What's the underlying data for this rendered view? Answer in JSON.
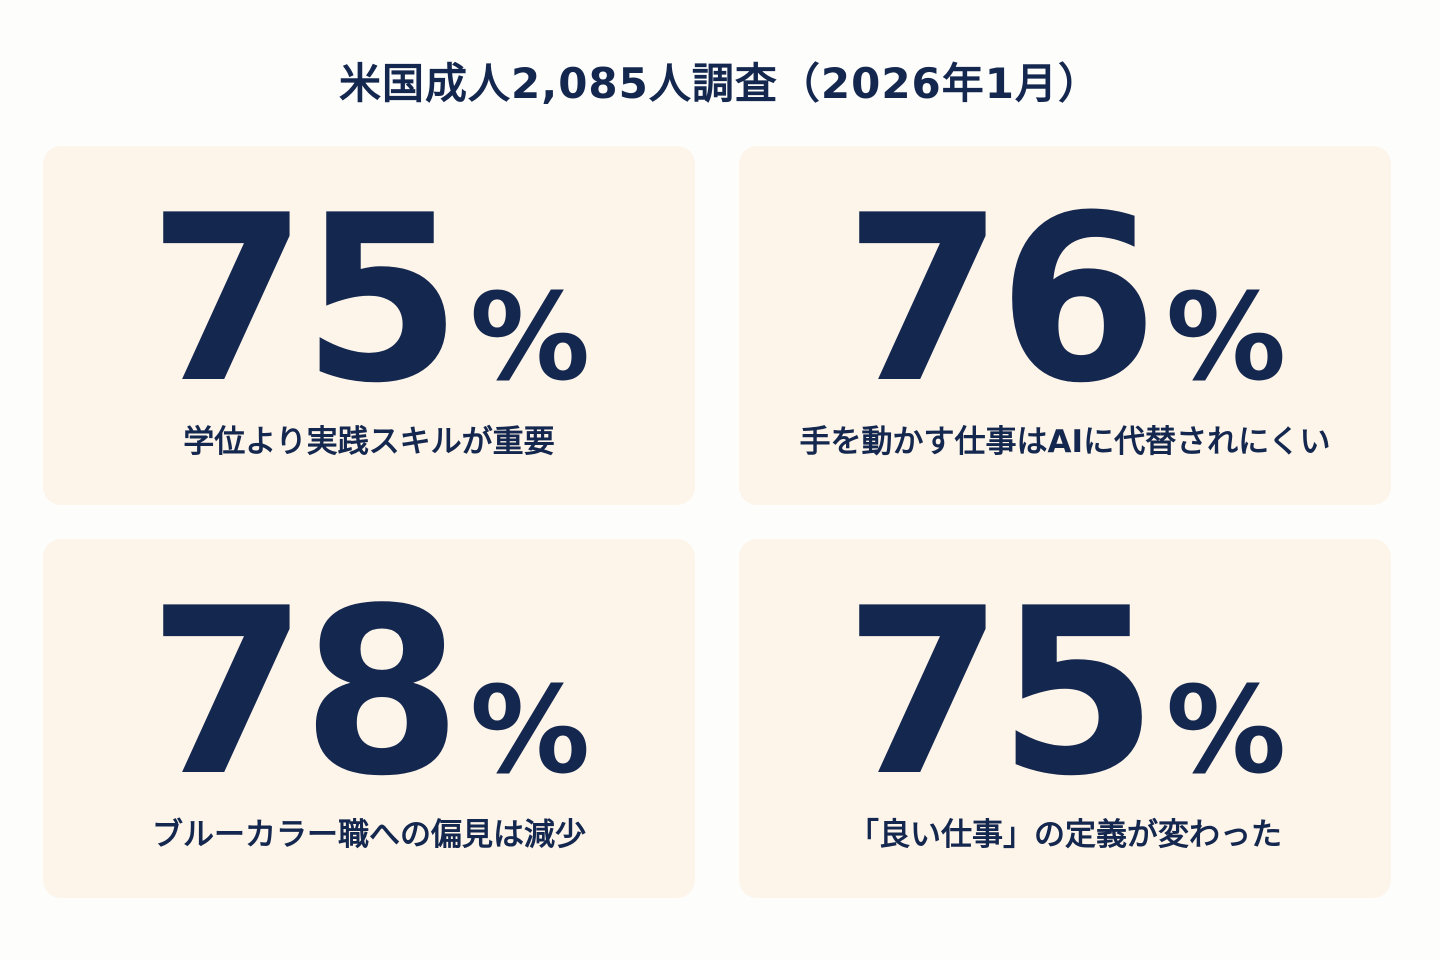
{
  "title": "米国成人2,085人調査（2026年1月）",
  "cards": [
    {
      "value": 75,
      "unit": "%",
      "label": "学位より実践スキルが重要"
    },
    {
      "value": 76,
      "unit": "%",
      "label": "手を動かす仕事はAIに代替されにくい"
    },
    {
      "value": 78,
      "unit": "%",
      "label": "ブルーカラー職への偏見は減少"
    },
    {
      "value": 75,
      "unit": "%",
      "label": "「良い仕事」の定義が変わった"
    }
  ]
}
